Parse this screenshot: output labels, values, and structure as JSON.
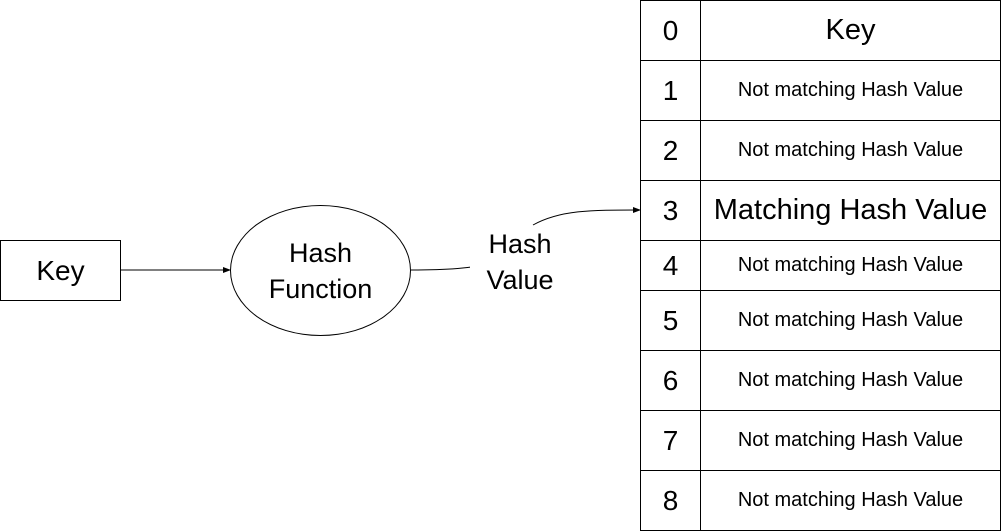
{
  "key_node": {
    "label": "Key"
  },
  "hash_function": {
    "line1": "Hash",
    "line2": "Function"
  },
  "hash_value_label": {
    "line1": "Hash",
    "line2": "Value"
  },
  "table": {
    "rows": [
      {
        "index": "0",
        "value": "Key",
        "style": "large"
      },
      {
        "index": "1",
        "value": "Not matching Hash Value",
        "style": "small"
      },
      {
        "index": "2",
        "value": "Not matching Hash Value",
        "style": "small"
      },
      {
        "index": "3",
        "value": "Matching Hash Value",
        "style": "large"
      },
      {
        "index": "4",
        "value": "Not matching Hash Value",
        "style": "small"
      },
      {
        "index": "5",
        "value": "Not matching Hash Value",
        "style": "small"
      },
      {
        "index": "6",
        "value": "Not matching Hash Value",
        "style": "small"
      },
      {
        "index": "7",
        "value": "Not matching Hash Value",
        "style": "small"
      },
      {
        "index": "8",
        "value": "Not matching Hash Value",
        "style": "small"
      }
    ]
  },
  "colors": {
    "stroke": "#000000",
    "fill": "#ffffff"
  }
}
